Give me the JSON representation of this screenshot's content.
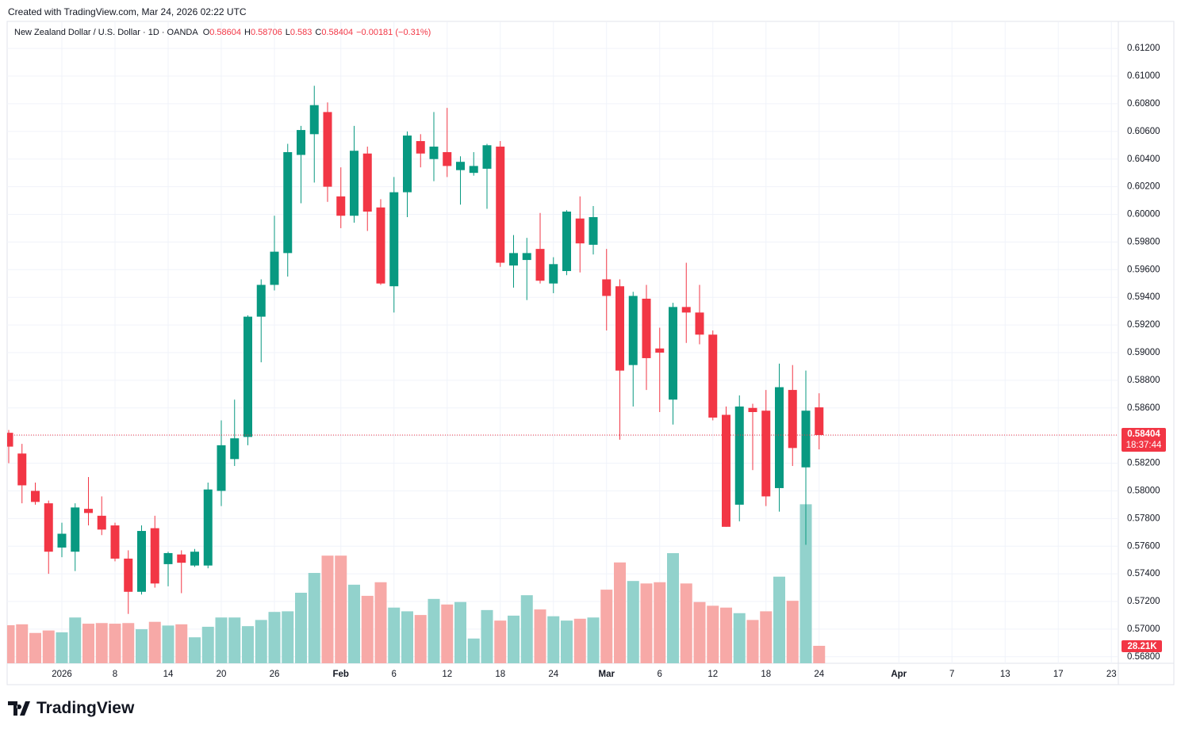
{
  "header": {
    "created": "Created with TradingView.com, Mar 24, 2026 02:22 UTC",
    "logo": "TradingView"
  },
  "chart_data": {
    "type": "candlestick",
    "title": "New Zealand Dollar / U.S. Dollar · 1D · OANDA",
    "ohlc_letters": [
      "O",
      "H",
      "L",
      "C"
    ],
    "change": "−0.00181 (−0.31%)",
    "countdown": "18:37:44",
    "up_color": "#089981",
    "down_color": "#f23645",
    "volume_up_color": "#92d2cc",
    "volume_down_color": "#f7a9a7",
    "grid": true,
    "categories": [
      null,
      null,
      null,
      null,
      "2026",
      null,
      null,
      null,
      "8",
      null,
      null,
      null,
      "14",
      null,
      null,
      null,
      "20",
      null,
      null,
      null,
      "26",
      null,
      null,
      null,
      null,
      "Feb",
      null,
      null,
      null,
      "6",
      null,
      null,
      null,
      "12",
      null,
      null,
      null,
      "18",
      null,
      null,
      null,
      "24",
      null,
      null,
      null,
      "Mar",
      null,
      null,
      null,
      "6",
      null,
      null,
      null,
      "12",
      null,
      null,
      null,
      "18",
      null,
      null,
      null,
      "24",
      null,
      null,
      null,
      null,
      null,
      "Apr",
      null,
      null,
      null,
      "7",
      null,
      null,
      null,
      "13",
      null,
      null,
      null,
      "17",
      null,
      null,
      null,
      "23"
    ],
    "open": [
      0.5842,
      0.5827,
      0.58,
      0.5791,
      0.5759,
      0.5756,
      0.5787,
      0.5782,
      0.5775,
      0.5751,
      0.5727,
      0.5773,
      0.5747,
      0.5754,
      0.5746,
      0.5746,
      0.58,
      0.5823,
      0.5839,
      0.5926,
      0.5949,
      0.5972,
      0.6043,
      0.6058,
      0.6074,
      0.6013,
      0.5999,
      0.6044,
      0.6005,
      0.5948,
      0.6016,
      0.6053,
      0.604,
      0.6045,
      0.6032,
      0.603,
      0.6033,
      0.6049,
      0.5963,
      0.5967,
      0.5975,
      0.595,
      0.5959,
      0.5997,
      0.5978,
      0.5953,
      0.5948,
      0.5891,
      0.5939,
      0.5903,
      0.5866,
      0.5933,
      0.5929,
      0.5913,
      0.5855,
      0.579,
      0.586,
      0.5858,
      0.5802,
      0.5873,
      0.5817,
      0.58604,
      null,
      null,
      null,
      null,
      null,
      null,
      null,
      null,
      null,
      null,
      null,
      null,
      null,
      null,
      null,
      null,
      null,
      null,
      null,
      null,
      null,
      null
    ],
    "high": [
      0.5844,
      0.5834,
      0.5806,
      0.5793,
      0.5777,
      0.5791,
      0.581,
      0.5796,
      0.5777,
      0.5757,
      0.5775,
      0.5782,
      0.5756,
      0.5757,
      0.5758,
      0.5806,
      0.5851,
      0.5866,
      0.5927,
      0.5953,
      0.5999,
      0.6051,
      0.6064,
      0.6093,
      0.6081,
      0.6034,
      0.6064,
      0.6049,
      0.6011,
      0.6027,
      0.606,
      0.6058,
      0.6074,
      0.6077,
      0.6042,
      0.6045,
      0.6051,
      0.6053,
      0.5985,
      0.5983,
      0.6001,
      0.5969,
      0.6003,
      0.6013,
      0.6006,
      0.5975,
      0.5953,
      0.5944,
      0.5949,
      0.5918,
      0.5936,
      0.5965,
      0.5949,
      0.5916,
      0.5861,
      0.5869,
      0.5863,
      0.5873,
      0.5892,
      0.5891,
      0.5887,
      0.58706,
      null,
      null,
      null,
      null,
      null,
      null,
      null,
      null,
      null,
      null,
      null,
      null,
      null,
      null,
      null,
      null,
      null,
      null,
      null,
      null,
      null,
      null
    ],
    "low": [
      0.582,
      0.5791,
      0.579,
      0.574,
      0.5752,
      0.5742,
      0.5775,
      0.5768,
      0.5749,
      0.5711,
      0.5725,
      0.573,
      0.5731,
      0.5726,
      0.5745,
      0.5744,
      0.5789,
      0.5818,
      0.5833,
      0.5893,
      0.5945,
      0.5955,
      0.6008,
      0.6023,
      0.6009,
      0.599,
      0.5994,
      0.5988,
      0.5949,
      0.5929,
      0.5998,
      0.6034,
      0.6024,
      0.6027,
      0.6007,
      0.6028,
      0.6004,
      0.5962,
      0.5947,
      0.5938,
      0.595,
      0.5943,
      0.5956,
      0.5958,
      0.5971,
      0.5916,
      0.5837,
      0.5861,
      0.5873,
      0.5857,
      0.5848,
      0.5907,
      0.5906,
      0.5851,
      0.5774,
      0.5778,
      0.5815,
      0.5789,
      0.5785,
      0.5818,
      0.5761,
      0.583,
      null,
      null,
      null,
      null,
      null,
      null,
      null,
      null,
      null,
      null,
      null,
      null,
      null,
      null,
      null,
      null,
      null,
      null,
      null,
      null,
      null,
      null
    ],
    "close": [
      0.5832,
      0.5804,
      0.5792,
      0.5756,
      0.5769,
      0.5788,
      0.5784,
      0.5772,
      0.5751,
      0.5727,
      0.5771,
      0.5733,
      0.5755,
      0.5748,
      0.5756,
      0.5801,
      0.5833,
      0.5838,
      0.5926,
      0.5949,
      0.5973,
      0.6045,
      0.6061,
      0.6079,
      0.602,
      0.5999,
      0.6046,
      0.6002,
      0.595,
      0.6016,
      0.6057,
      0.6044,
      0.6049,
      0.6035,
      0.6038,
      0.6035,
      0.605,
      0.5965,
      0.5972,
      0.5972,
      0.5952,
      0.5964,
      0.6002,
      0.5979,
      0.5998,
      0.5941,
      0.5887,
      0.5941,
      0.5896,
      0.59,
      0.5933,
      0.5929,
      0.5913,
      0.5853,
      0.5774,
      0.5861,
      0.5857,
      0.5796,
      0.5875,
      0.5831,
      0.5858,
      0.58404,
      null,
      null,
      null,
      null,
      null,
      null,
      null,
      null,
      null,
      null,
      null,
      null,
      null,
      null,
      null,
      null,
      null,
      null,
      null,
      null,
      null,
      null
    ],
    "volume": {
      "values": [
        61500,
        63000,
        49000,
        53000,
        50000,
        74000,
        64000,
        65000,
        64000,
        65000,
        55000,
        67000,
        61000,
        63000,
        42000,
        59000,
        74000,
        74000,
        60000,
        70000,
        83000,
        84000,
        114000,
        146000,
        174000,
        174000,
        127000,
        109000,
        131000,
        90000,
        84000,
        78000,
        104000,
        95000,
        99000,
        40000,
        86000,
        69000,
        77000,
        110000,
        87000,
        76000,
        69000,
        72000,
        74000,
        119000,
        163000,
        133000,
        129000,
        131000,
        178000,
        129000,
        99000,
        93000,
        90000,
        81000,
        70000,
        84000,
        140000,
        101000,
        257000,
        28210,
        null,
        null,
        null,
        null,
        null,
        null,
        null,
        null,
        null,
        null,
        null,
        null,
        null,
        null,
        null,
        null,
        null,
        null,
        null,
        null,
        null,
        null
      ],
      "value_labels": [
        null,
        null,
        null,
        null,
        null,
        null,
        null,
        null,
        null,
        null,
        null,
        null,
        null,
        null,
        null,
        null,
        null,
        null,
        null,
        null,
        null,
        null,
        null,
        null,
        null,
        null,
        null,
        null,
        null,
        null,
        null,
        null,
        null,
        null,
        null,
        null,
        null,
        null,
        null,
        null,
        null,
        null,
        null,
        null,
        null,
        null,
        null,
        null,
        null,
        null,
        null,
        null,
        null,
        null,
        null,
        null,
        null,
        null,
        null,
        null,
        null,
        "28.21K",
        null,
        null,
        null,
        null,
        null,
        null,
        null,
        null,
        null,
        null,
        null,
        null,
        null,
        null,
        null,
        null,
        null,
        null,
        null,
        null,
        null,
        null
      ]
    },
    "ylim": [
      0.56753,
      0.6139
    ],
    "yticks": [
      {
        "value": 0.568,
        "label": "0.56800"
      },
      {
        "value": 0.57,
        "label": "0.57000"
      },
      {
        "value": 0.572,
        "label": "0.57200"
      },
      {
        "value": 0.574,
        "label": "0.57400"
      },
      {
        "value": 0.576,
        "label": "0.57600"
      },
      {
        "value": 0.578,
        "label": "0.57800"
      },
      {
        "value": 0.58,
        "label": "0.58000"
      },
      {
        "value": 0.582,
        "label": "0.58200"
      },
      {
        "value": 0.584,
        "label": "0.58400"
      },
      {
        "value": 0.586,
        "label": "0.58600"
      },
      {
        "value": 0.588,
        "label": "0.58800"
      },
      {
        "value": 0.59,
        "label": "0.59000"
      },
      {
        "value": 0.592,
        "label": "0.59200"
      },
      {
        "value": 0.594,
        "label": "0.59400"
      },
      {
        "value": 0.596,
        "label": "0.59600"
      },
      {
        "value": 0.598,
        "label": "0.59800"
      },
      {
        "value": 0.6,
        "label": "0.60000"
      },
      {
        "value": 0.602,
        "label": "0.60200"
      },
      {
        "value": 0.604,
        "label": "0.60400"
      },
      {
        "value": 0.606,
        "label": "0.60600"
      },
      {
        "value": 0.608,
        "label": "0.60800"
      },
      {
        "value": 0.61,
        "label": "0.61000"
      },
      {
        "value": 0.612,
        "label": "0.61200"
      }
    ]
  }
}
